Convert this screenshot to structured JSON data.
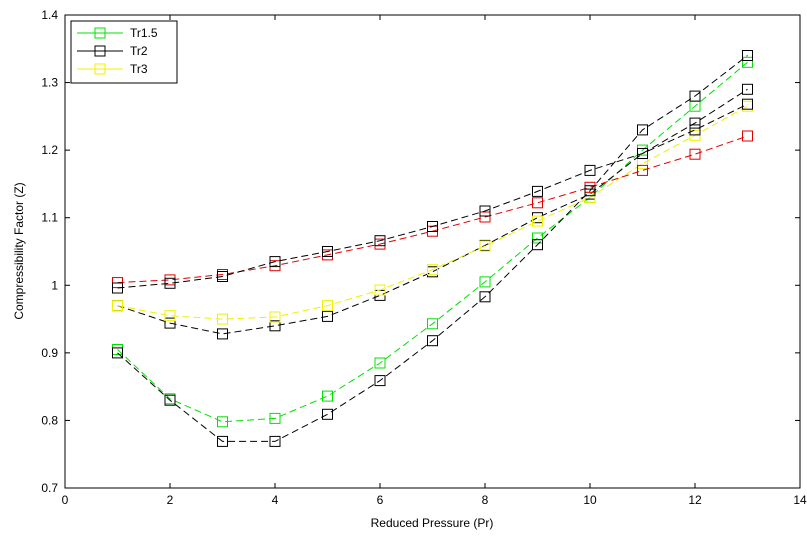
{
  "chart_data": {
    "type": "line",
    "xlabel": "Reduced Pressure (Pr)",
    "ylabel": "Compressibility Factor (Z)",
    "xlim": [
      0,
      14
    ],
    "ylim": [
      0.7,
      1.4
    ],
    "xticks": [
      0,
      2,
      4,
      6,
      8,
      10,
      12,
      14
    ],
    "yticks": [
      0.7,
      0.8,
      0.9,
      1,
      1.1,
      1.2,
      1.3,
      1.4
    ],
    "xtick_labels": [
      "0",
      "2",
      "4",
      "6",
      "8",
      "10",
      "12",
      "14"
    ],
    "ytick_labels": [
      "0.7",
      "0.8",
      "0.9",
      "1",
      "1.1",
      "1.2",
      "1.3",
      "1.4"
    ],
    "grid": false,
    "legend_position": "top-left",
    "x": [
      1,
      2,
      3,
      4,
      5,
      6,
      7,
      8,
      9,
      10,
      11,
      12,
      13
    ],
    "series": [
      {
        "name": "Tr1.5",
        "color": "#00e000",
        "marker": "square",
        "linestyle": "dashed",
        "values": [
          0.905,
          0.832,
          0.798,
          0.803,
          0.836,
          0.885,
          0.943,
          1.005,
          1.07,
          1.13,
          1.2,
          1.265,
          1.33
        ]
      },
      {
        "name": "Tr2",
        "color": "#000000",
        "marker": "square",
        "linestyle": "dashed",
        "values": [
          0.97,
          0.944,
          0.928,
          0.94,
          0.954,
          0.985,
          1.02,
          1.059,
          1.1,
          1.135,
          1.195,
          1.24,
          1.29
        ]
      },
      {
        "name": "Tr3",
        "color": "#f0f000",
        "marker": "square",
        "linestyle": "dashed",
        "values": [
          0.97,
          0.955,
          0.95,
          0.953,
          0.97,
          0.993,
          1.023,
          1.058,
          1.095,
          1.13,
          1.18,
          1.222,
          1.265
        ]
      },
      {
        "name": "",
        "color": "#e00000",
        "marker": "square",
        "linestyle": "dashed",
        "values": [
          1.004,
          1.008,
          1.016,
          1.029,
          1.045,
          1.061,
          1.08,
          1.101,
          1.122,
          1.145,
          1.17,
          1.194,
          1.221
        ]
      },
      {
        "name": "",
        "color": "#000000",
        "marker": "square",
        "linestyle": "dashed",
        "values": [
          0.996,
          1.003,
          1.013,
          1.035,
          1.05,
          1.066,
          1.087,
          1.11,
          1.139,
          1.17,
          1.195,
          1.23,
          1.268
        ]
      },
      {
        "name": "",
        "color": "#000000",
        "marker": "square",
        "linestyle": "dashed",
        "values": [
          0.9,
          0.83,
          0.769,
          0.769,
          0.809,
          0.859,
          0.918,
          0.983,
          1.06,
          1.14,
          1.23,
          1.28,
          1.34
        ]
      }
    ]
  }
}
